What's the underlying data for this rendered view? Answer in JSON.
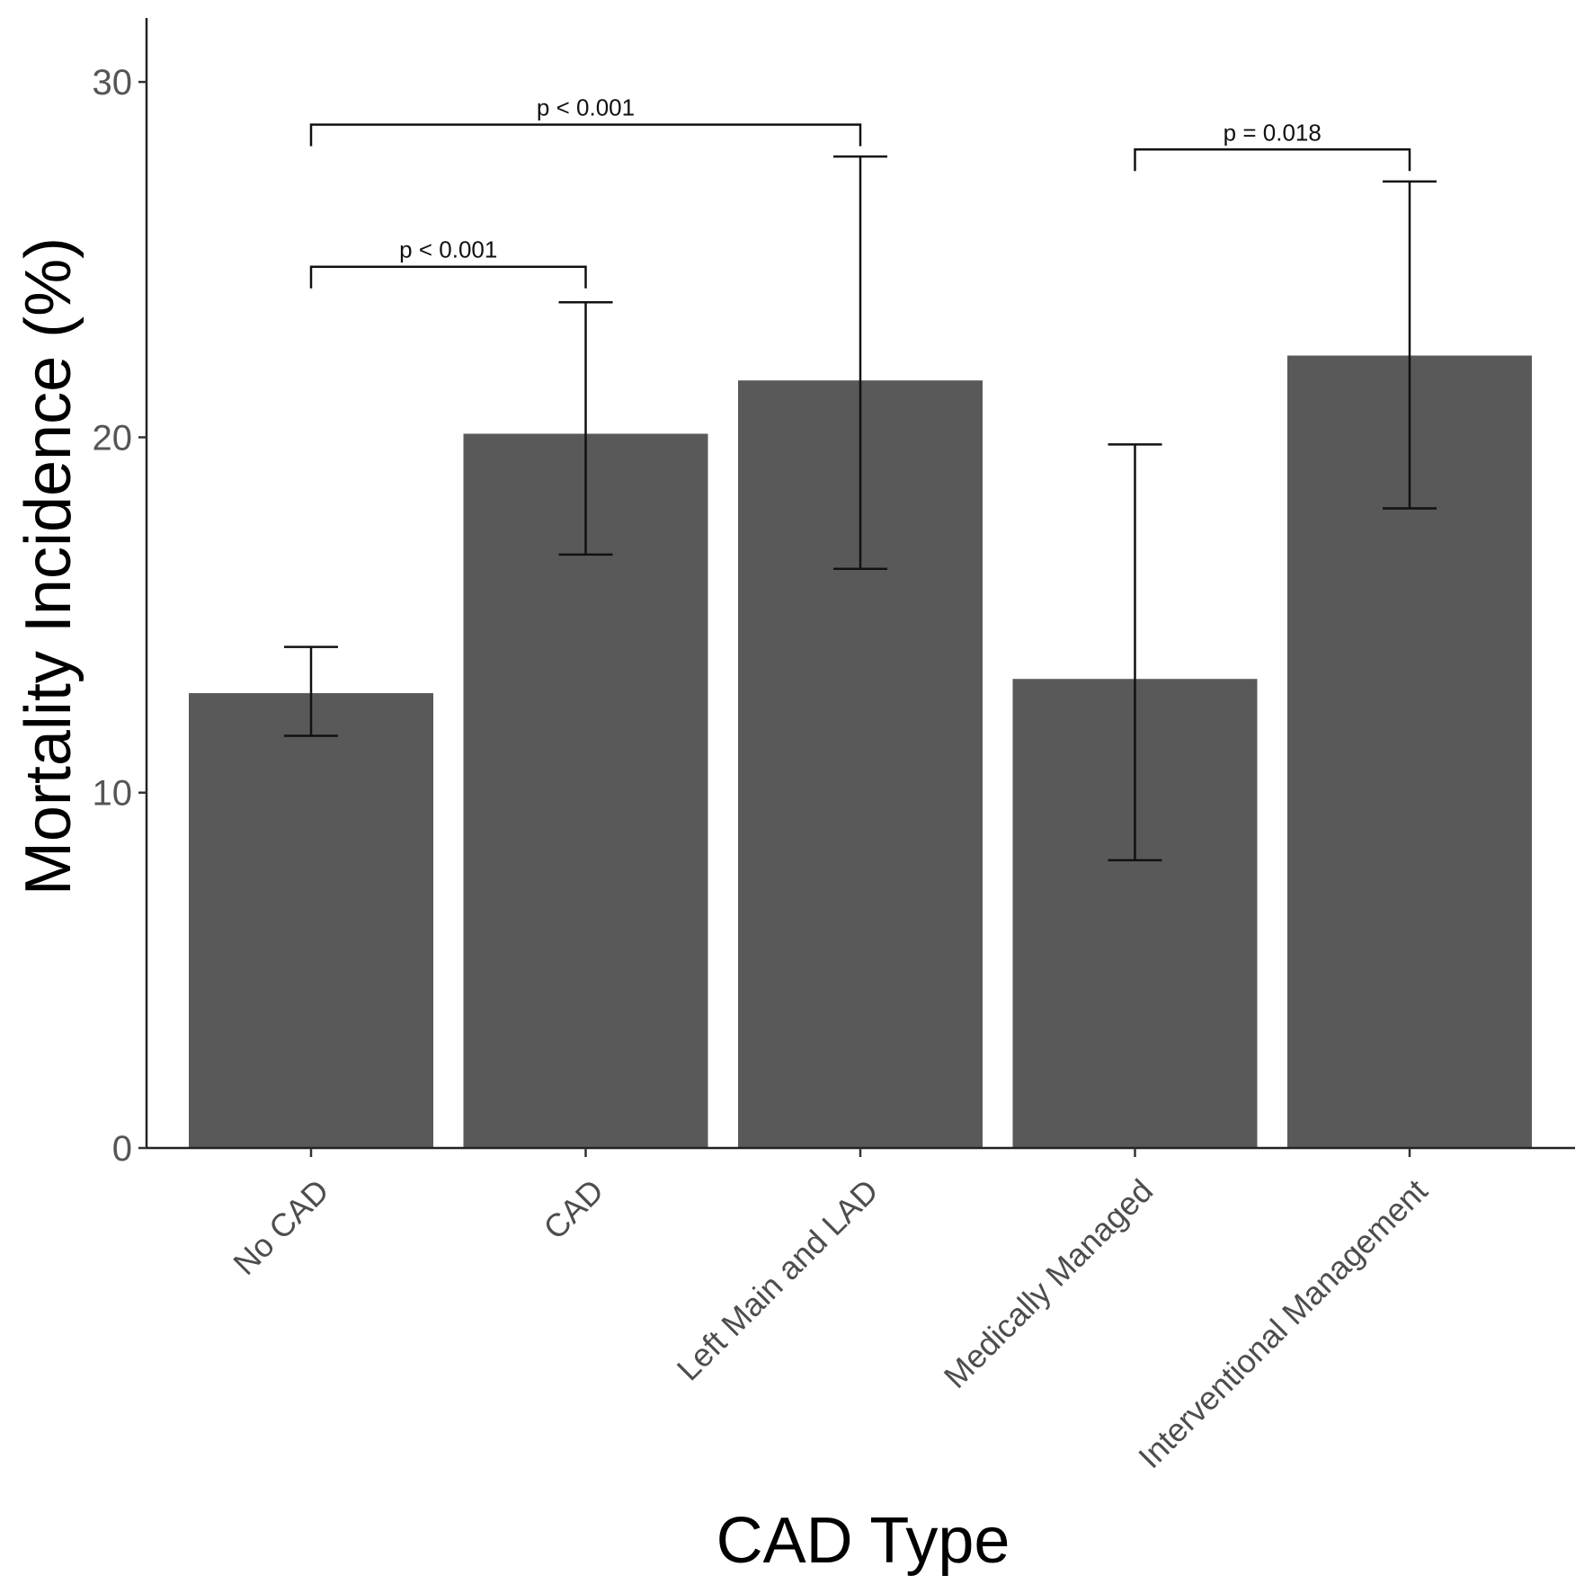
{
  "chart_data": {
    "type": "bar",
    "title": "",
    "xlabel": "CAD Type",
    "ylabel": "Mortality Incidence (%)",
    "ylim": [
      0,
      31.8
    ],
    "yticks": [
      0,
      10,
      20,
      30
    ],
    "categories": [
      "No CAD",
      "CAD",
      "Left Main and LAD",
      "Medically Managed",
      "Interventional Management"
    ],
    "values": [
      12.8,
      20.1,
      21.6,
      13.2,
      22.3
    ],
    "error_low": [
      11.6,
      16.7,
      16.3,
      8.1,
      18.0
    ],
    "error_high": [
      14.1,
      23.8,
      27.9,
      19.8,
      27.2
    ],
    "bar_color": "#595959",
    "grid": false,
    "legend": "none",
    "comparisons": [
      {
        "from": 0,
        "to": 1,
        "label": "p < 0.001",
        "y": 24.8
      },
      {
        "from": 0,
        "to": 2,
        "label": "p < 0.001",
        "y": 28.8
      },
      {
        "from": 3,
        "to": 4,
        "label": "p = 0.018",
        "y": 28.1
      }
    ]
  }
}
